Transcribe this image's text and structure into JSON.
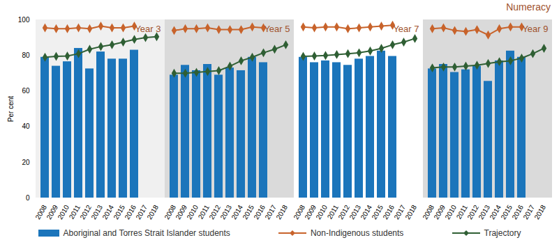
{
  "chart_data": {
    "type": "bar",
    "title": "Numeracy",
    "y_label": "Per cent",
    "categories": [
      "2008",
      "2009",
      "2010",
      "2011",
      "2012",
      "2013",
      "2014",
      "2015",
      "2016",
      "2017",
      "2018"
    ],
    "ylim": [
      0,
      100
    ],
    "yticks": [
      0,
      20,
      40,
      60,
      80,
      100
    ],
    "grid": false,
    "panels": [
      {
        "title": "Year 3",
        "series": [
          {
            "name": "Aboriginal and Torres Strait Islander students",
            "type": "bar",
            "color": "#1b75bb",
            "values": [
              79,
              74,
              76.5,
              84,
              72.5,
              82,
              78,
              78,
              83,
              null,
              null
            ]
          },
          {
            "name": "Non-Indigenous students",
            "type": "line",
            "color": "#c8632b",
            "marker": "diamond",
            "values": [
              95.5,
              95,
              95,
              95.5,
              95,
              96.5,
              95.5,
              95.5,
              96.5,
              null,
              null
            ]
          },
          {
            "name": "Trajectory",
            "type": "line",
            "color": "#2f5f34",
            "marker": "diamond",
            "values": [
              79,
              79.5,
              79.7,
              81,
              83.5,
              85,
              86,
              87.5,
              89,
              90,
              90.5
            ]
          }
        ]
      },
      {
        "title": "Year 5",
        "series": [
          {
            "name": "Aboriginal and Torres Strait Islander students",
            "type": "bar",
            "color": "#1b75bb",
            "values": [
              69,
              74.5,
              71.5,
              75,
              69,
              73,
              71.5,
              79,
              76,
              null,
              null
            ]
          },
          {
            "name": "Non-Indigenous students",
            "type": "line",
            "color": "#c8632b",
            "marker": "diamond",
            "values": [
              94,
              95,
              95,
              95.5,
              94.5,
              94.5,
              94.5,
              96,
              95.5,
              null,
              null
            ]
          },
          {
            "name": "Trajectory",
            "type": "line",
            "color": "#2f5f34",
            "marker": "diamond",
            "values": [
              70,
              70,
              70.5,
              71,
              71.5,
              74,
              77,
              79,
              81.5,
              83.5,
              86
            ]
          }
        ]
      },
      {
        "title": "Year 7",
        "series": [
          {
            "name": "Aboriginal and Torres Strait Islander students",
            "type": "bar",
            "color": "#1b75bb",
            "values": [
              79,
              76,
              77,
              76,
              74.5,
              78,
              79.5,
              82.5,
              79.5,
              null,
              null
            ]
          },
          {
            "name": "Non-Indigenous students",
            "type": "line",
            "color": "#c8632b",
            "marker": "diamond",
            "values": [
              96,
              95.5,
              96,
              96,
              95,
              95.5,
              96,
              96.5,
              97,
              null,
              null
            ]
          },
          {
            "name": "Trajectory",
            "type": "line",
            "color": "#2f5f34",
            "marker": "diamond",
            "values": [
              79.5,
              79.7,
              80,
              80.5,
              81,
              81.5,
              82.5,
              84,
              86,
              87.5,
              89.5
            ]
          }
        ]
      },
      {
        "title": "Year 9",
        "series": [
          {
            "name": "Aboriginal and Torres Strait Islander students",
            "type": "bar",
            "color": "#1b75bb",
            "values": [
              72.5,
              75,
              70.5,
              72,
              74,
              65.5,
              77,
              82.5,
              79,
              null,
              null
            ]
          },
          {
            "name": "Non-Indigenous students",
            "type": "line",
            "color": "#c8632b",
            "marker": "diamond",
            "values": [
              95,
              95.5,
              94,
              93.5,
              94.5,
              91.5,
              95,
              96,
              96,
              null,
              null
            ]
          },
          {
            "name": "Trajectory",
            "type": "line",
            "color": "#2f5f34",
            "marker": "diamond",
            "values": [
              73,
              73.5,
              73.5,
              74,
              74.5,
              75.5,
              76.5,
              77,
              78.5,
              81,
              84
            ]
          }
        ]
      }
    ]
  }
}
